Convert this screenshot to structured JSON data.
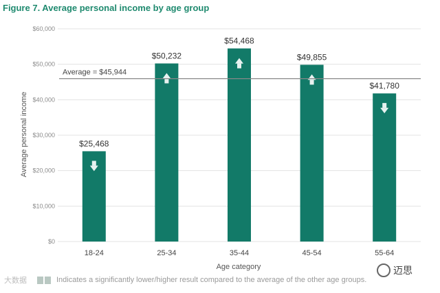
{
  "title": "Figure 7. Average personal income by age group",
  "chart_data": {
    "type": "bar",
    "categories": [
      "18-24",
      "25-34",
      "35-44",
      "45-54",
      "55-64"
    ],
    "values": [
      25468,
      50232,
      54468,
      49855,
      41780
    ],
    "value_labels": [
      "$25,468",
      "$50,232",
      "$54,468",
      "$49,855",
      "$41,780"
    ],
    "indicators": [
      "down",
      "up",
      "up",
      "up",
      "down"
    ],
    "ylim": [
      0,
      60000
    ],
    "yticks": [
      0,
      10000,
      20000,
      30000,
      40000,
      50000,
      60000
    ],
    "ytick_labels": [
      "$0",
      "$10,000",
      "$20,000",
      "$30,000",
      "$40,000",
      "$50,000",
      "$60,000"
    ],
    "xlabel": "Age category",
    "ylabel": "Average personal income",
    "average": 45944,
    "average_label": "Average = $45,944",
    "grid": true,
    "bar_color": "#127a68"
  },
  "footnote": "Indicates a significantly lower/higher result compared to the average of the other age groups.",
  "watermark_left": "大数据",
  "watermark_right": "迈思"
}
